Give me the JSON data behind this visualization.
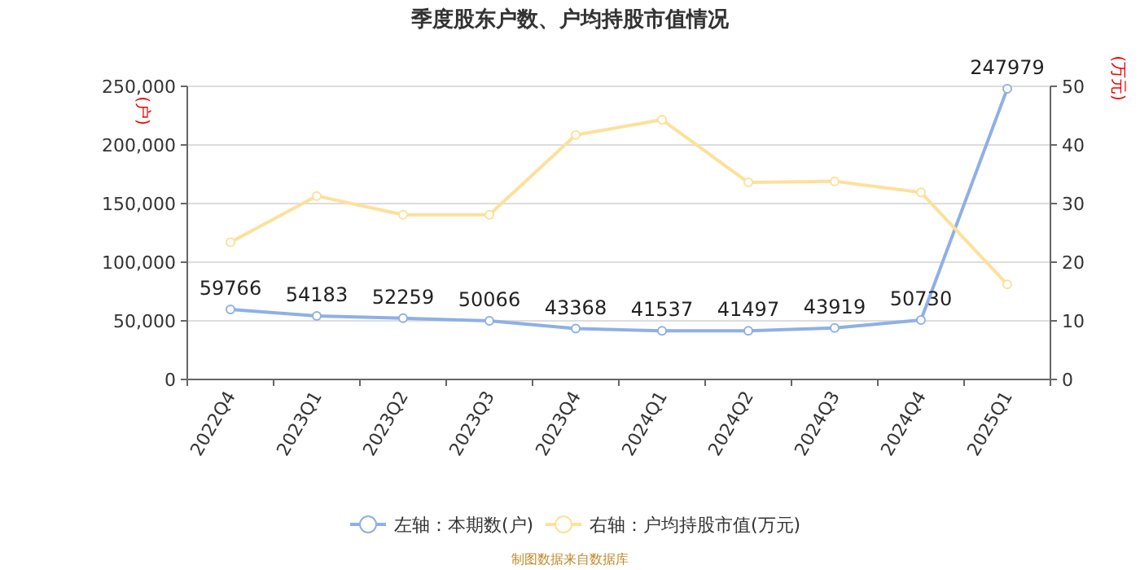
{
  "chart_data": {
    "type": "line",
    "title": "季度股东户数、户均持股市值情况",
    "ylabel": "(户)",
    "y2label": "(万元)",
    "categories": [
      "2022Q4",
      "2023Q1",
      "2023Q2",
      "2023Q3",
      "2023Q4",
      "2024Q1",
      "2024Q2",
      "2024Q3",
      "2024Q4",
      "2025Q1"
    ],
    "series": [
      {
        "name": "左轴：本期数(户)",
        "color": "#8eb0e6",
        "values": [
          59766,
          54183,
          52259,
          50066,
          43368,
          41537,
          41497,
          43919,
          50730,
          247979
        ],
        "value_labels": [
          "59766",
          "54183",
          "52259",
          "50066",
          "43368",
          "41537",
          "41497",
          "43919",
          "50730",
          "247979"
        ]
      },
      {
        "name": "右轴：户均持股市值(万元)",
        "color": "#fde09a",
        "axis": "y2",
        "values": [
          23.4,
          31.3,
          28.1,
          28.1,
          41.7,
          44.3,
          33.6,
          33.8,
          31.9,
          16.2
        ]
      }
    ],
    "ylim": [
      0,
      250000
    ],
    "yticks": [
      {
        "value": 0,
        "label": "0"
      },
      {
        "value": 50000,
        "label": "50,000"
      },
      {
        "value": 100000,
        "label": "100,000"
      },
      {
        "value": 150000,
        "label": "150,000"
      },
      {
        "value": 200000,
        "label": "200,000"
      },
      {
        "value": 250000,
        "label": "250,000"
      }
    ],
    "y2lim": [
      0,
      50
    ],
    "y2ticks": [
      0,
      10,
      20,
      30,
      40,
      50
    ],
    "grid": "y",
    "legend": "bottom",
    "marker": "circle",
    "annotations": [
      "制图数据来自数据库"
    ]
  }
}
